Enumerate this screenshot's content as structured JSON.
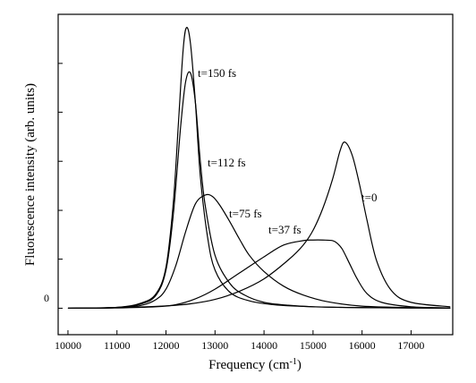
{
  "chart_data": {
    "type": "line",
    "xlabel": "Frequency (cm",
    "xlabel_sup": "-1",
    "xlabel_close": ")",
    "ylabel": "Fluorescence intensity (arb. units)",
    "xlim": [
      9800,
      17850
    ],
    "ylim": [
      -0.09,
      1.0
    ],
    "x_ticks": [
      10000,
      11000,
      12000,
      13000,
      14000,
      15000,
      16000,
      17000
    ],
    "x_tick_labels": [
      "10000",
      "11000",
      "12000",
      "13000",
      "14000",
      "15000",
      "16000",
      "17000"
    ],
    "y_ticks": [
      0,
      0.167,
      0.333,
      0.5,
      0.667,
      0.833
    ],
    "y_zero_label": "0",
    "grid": false,
    "series": [
      {
        "name": "t=0",
        "x": [
          10000,
          11000,
          12000,
          12500,
          13000,
          13500,
          14000,
          14500,
          14800,
          15000,
          15200,
          15400,
          15550,
          15650,
          15800,
          15950,
          16100,
          16300,
          16600,
          17000,
          17800
        ],
        "y": [
          0,
          0.002,
          0.008,
          0.015,
          0.03,
          0.058,
          0.1,
          0.165,
          0.215,
          0.265,
          0.34,
          0.44,
          0.535,
          0.565,
          0.52,
          0.42,
          0.3,
          0.16,
          0.06,
          0.02,
          0.005
        ]
      },
      {
        "name": "t=37 fs",
        "x": [
          10000,
          11000,
          11800,
          12200,
          12600,
          13000,
          13500,
          14000,
          14400,
          14800,
          15000,
          15200,
          15400,
          15500,
          15600,
          15750,
          15900,
          16100,
          16400,
          17000,
          17800
        ],
        "y": [
          0,
          0.001,
          0.005,
          0.012,
          0.032,
          0.065,
          0.12,
          0.175,
          0.215,
          0.23,
          0.232,
          0.232,
          0.23,
          0.22,
          0.2,
          0.15,
          0.1,
          0.05,
          0.02,
          0.005,
          0.001
        ]
      },
      {
        "name": "t=75 fs",
        "x": [
          10000,
          11000,
          11500,
          11800,
          12000,
          12200,
          12400,
          12600,
          12800,
          12950,
          13100,
          13300,
          13500,
          13700,
          14000,
          14400,
          14800,
          15300,
          16000,
          17000,
          17800
        ],
        "y": [
          0,
          0.002,
          0.01,
          0.03,
          0.065,
          0.145,
          0.26,
          0.355,
          0.385,
          0.38,
          0.35,
          0.295,
          0.235,
          0.18,
          0.125,
          0.075,
          0.045,
          0.022,
          0.007,
          0.002,
          0.001
        ]
      },
      {
        "name": "t=112 fs",
        "x": [
          10000,
          11000,
          11500,
          11800,
          12000,
          12150,
          12300,
          12400,
          12500,
          12600,
          12700,
          12800,
          13000,
          13300,
          13600,
          14000,
          14500,
          15000,
          16000,
          17000,
          17800
        ],
        "y": [
          0,
          0.003,
          0.015,
          0.045,
          0.13,
          0.32,
          0.62,
          0.77,
          0.8,
          0.7,
          0.5,
          0.35,
          0.18,
          0.085,
          0.045,
          0.02,
          0.01,
          0.005,
          0.002,
          0.001,
          0
        ],
        "label": "t=112 fs"
      },
      {
        "name": "t=150 fs",
        "x": [
          10000,
          11000,
          11500,
          11800,
          12000,
          12150,
          12250,
          12350,
          12420,
          12500,
          12600,
          12700,
          12850,
          13000,
          13300,
          13700,
          14200,
          15000,
          16000,
          17000,
          17800
        ],
        "y": [
          0,
          0.003,
          0.018,
          0.05,
          0.14,
          0.36,
          0.62,
          0.88,
          0.955,
          0.9,
          0.7,
          0.45,
          0.24,
          0.13,
          0.055,
          0.025,
          0.012,
          0.005,
          0.002,
          0.001,
          0
        ]
      }
    ],
    "curve_labels": [
      {
        "text": "t=150 fs"
      },
      {
        "text": "t=112 fs"
      },
      {
        "text": "t=75 fs"
      },
      {
        "text": "t=37 fs"
      },
      {
        "text": "t=0"
      }
    ]
  }
}
